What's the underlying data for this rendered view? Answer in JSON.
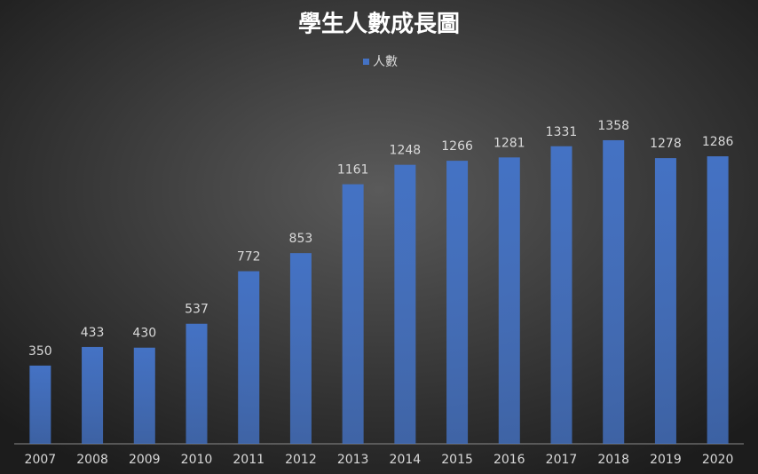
{
  "chart_data": {
    "type": "bar",
    "title": "學生人數成長圖",
    "categories": [
      "2007",
      "2008",
      "2009",
      "2010",
      "2011",
      "2012",
      "2013",
      "2014",
      "2015",
      "2016",
      "2017",
      "2018",
      "2019",
      "2020"
    ],
    "series": [
      {
        "name": "人數",
        "color": "#4472c4",
        "values": [
          350,
          433,
          430,
          537,
          772,
          853,
          1161,
          1248,
          1266,
          1281,
          1331,
          1358,
          1278,
          1286
        ]
      }
    ],
    "ylim": [
      0,
      1600
    ],
    "legend": "top"
  }
}
